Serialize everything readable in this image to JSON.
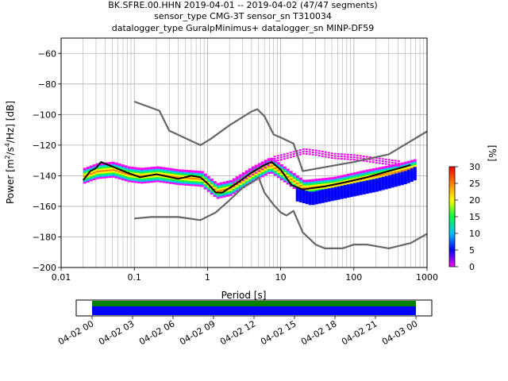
{
  "chart_data": [
    {
      "type": "heatmap",
      "title_lines": [
        "BK.SFRE.00.HHN   2019-04-01 -- 2019-04-02  (47/47 segments)",
        "sensor_type CMG-3T sensor_sn T310034",
        "datalogger_type GuralpMinimus+ datalogger_sn MINP-DF59"
      ],
      "xlabel": "Period [s]",
      "ylabel": "Power [m²/s⁴/Hz] [dB]",
      "ylabel_parts": [
        "Power [m",
        "2",
        "/s",
        "4",
        "/Hz] [dB]"
      ],
      "xscale": "log",
      "xlim": [
        0.01,
        1000
      ],
      "ylim": [
        -200,
        -50
      ],
      "xticks": [
        0.01,
        0.1,
        1,
        10,
        100,
        1000
      ],
      "xtick_labels": [
        "0.01",
        "0.1",
        "1",
        "10",
        "100",
        "1000"
      ],
      "yticks": [
        -200,
        -180,
        -160,
        -140,
        -120,
        -100,
        -80,
        -60
      ],
      "ytick_labels": [
        "−200",
        "−180",
        "−160",
        "−140",
        "−120",
        "−100",
        "−80",
        "−60"
      ],
      "grid": true,
      "colorbar": {
        "label": "[%]",
        "ticks": [
          0,
          5,
          10,
          15,
          20,
          25,
          30
        ],
        "tick_labels": [
          "0",
          "5",
          "10",
          "15",
          "20",
          "25",
          "30"
        ],
        "range": [
          0,
          30
        ],
        "colors": [
          "#ff00ff",
          "#0000ff",
          "#00c0ff",
          "#00ff40",
          "#ffff00",
          "#ff8000",
          "#ff0000"
        ]
      },
      "series": [
        {
          "name": "median",
          "color": "#000000",
          "points": [
            [
              0.02,
              -143
            ],
            [
              0.025,
              -137
            ],
            [
              0.03,
              -135
            ],
            [
              0.035,
              -131
            ],
            [
              0.05,
              -134
            ],
            [
              0.08,
              -138
            ],
            [
              0.12,
              -141
            ],
            [
              0.2,
              -139
            ],
            [
              0.4,
              -142
            ],
            [
              0.6,
              -140
            ],
            [
              0.8,
              -141
            ],
            [
              1.0,
              -145
            ],
            [
              1.3,
              -151
            ],
            [
              1.6,
              -151
            ],
            [
              2.5,
              -145
            ],
            [
              4,
              -138
            ],
            [
              6,
              -133
            ],
            [
              7.5,
              -131
            ],
            [
              10,
              -136
            ],
            [
              14,
              -146
            ],
            [
              20,
              -149
            ],
            [
              40,
              -147
            ],
            [
              80,
              -144
            ],
            [
              150,
              -141
            ],
            [
              300,
              -137
            ],
            [
              600,
              -133
            ]
          ]
        },
        {
          "name": "low noise model",
          "color": "#666666",
          "points": [
            [
              0.1,
              -168
            ],
            [
              0.17,
              -167
            ],
            [
              0.4,
              -167
            ],
            [
              0.8,
              -169
            ],
            [
              1.3,
              -164
            ],
            [
              2,
              -156
            ],
            [
              3,
              -148
            ],
            [
              4.5,
              -143
            ],
            [
              5,
              -141
            ],
            [
              6,
              -151
            ],
            [
              8,
              -159
            ],
            [
              10,
              -164
            ],
            [
              12,
              -166
            ],
            [
              15,
              -163
            ],
            [
              20,
              -177
            ],
            [
              30,
              -185
            ],
            [
              40,
              -187.5
            ],
            [
              70,
              -187.5
            ],
            [
              100,
              -185
            ],
            [
              150,
              -185
            ],
            [
              300,
              -187.5
            ],
            [
              600,
              -184
            ],
            [
              1000,
              -178
            ]
          ]
        },
        {
          "name": "high noise model",
          "color": "#666666",
          "points": [
            [
              0.1,
              -91.5
            ],
            [
              0.22,
              -97.5
            ],
            [
              0.3,
              -110.5
            ],
            [
              0.8,
              -120
            ],
            [
              1.1,
              -116
            ],
            [
              2,
              -107
            ],
            [
              4,
              -98
            ],
            [
              4.8,
              -96.5
            ],
            [
              6,
              -101
            ],
            [
              8,
              -113
            ],
            [
              10,
              -115
            ],
            [
              15,
              -119
            ],
            [
              20,
              -137
            ],
            [
              100,
              -131
            ],
            [
              300,
              -126
            ],
            [
              1000,
              -111
            ]
          ]
        },
        {
          "name": "density_main",
          "color": "#00e0c0",
          "points": [
            [
              0.02,
              -140
            ],
            [
              0.03,
              -137
            ],
            [
              0.05,
              -136
            ],
            [
              0.08,
              -139
            ],
            [
              0.12,
              -140
            ],
            [
              0.2,
              -139
            ],
            [
              0.4,
              -141
            ],
            [
              0.8,
              -142
            ],
            [
              1.3,
              -150
            ],
            [
              2,
              -148
            ],
            [
              4,
              -139
            ],
            [
              7,
              -133
            ],
            [
              10,
              -138
            ],
            [
              20,
              -148
            ],
            [
              50,
              -146
            ],
            [
              150,
              -141
            ],
            [
              400,
              -137
            ],
            [
              700,
              -134
            ]
          ]
        },
        {
          "name": "density_lower",
          "color": "#0000ff",
          "points": [
            [
              15,
              -152
            ],
            [
              25,
              -155
            ],
            [
              50,
              -152
            ],
            [
              100,
              -149
            ],
            [
              200,
              -146
            ],
            [
              500,
              -141
            ],
            [
              700,
              -138
            ]
          ]
        },
        {
          "name": "density_upper",
          "color": "#ff00ff",
          "points": [
            [
              2,
              -146
            ],
            [
              3,
              -141
            ],
            [
              5,
              -135
            ],
            [
              8,
              -129
            ],
            [
              12,
              -127
            ],
            [
              20,
              -124
            ],
            [
              30,
              -125
            ],
            [
              50,
              -127
            ],
            [
              100,
              -128
            ],
            [
              200,
              -130
            ],
            [
              400,
              -132
            ]
          ]
        }
      ]
    },
    {
      "type": "timeline",
      "range_labels": [
        "04-02 00",
        "04-02 03",
        "04-02 06",
        "04-02 09",
        "04-02 12",
        "04-02 15",
        "04-02 18",
        "04-02 21",
        "04-03 00"
      ],
      "range_hours": [
        0,
        24
      ],
      "ticks_hours": [
        0,
        3,
        6,
        9,
        12,
        15,
        18,
        21,
        24
      ],
      "segments": [
        {
          "name": "data",
          "color": "#008000",
          "start": 0,
          "end": 24
        },
        {
          "name": "coverage",
          "color": "#0000ff",
          "start": 0,
          "end": 24
        }
      ]
    }
  ]
}
